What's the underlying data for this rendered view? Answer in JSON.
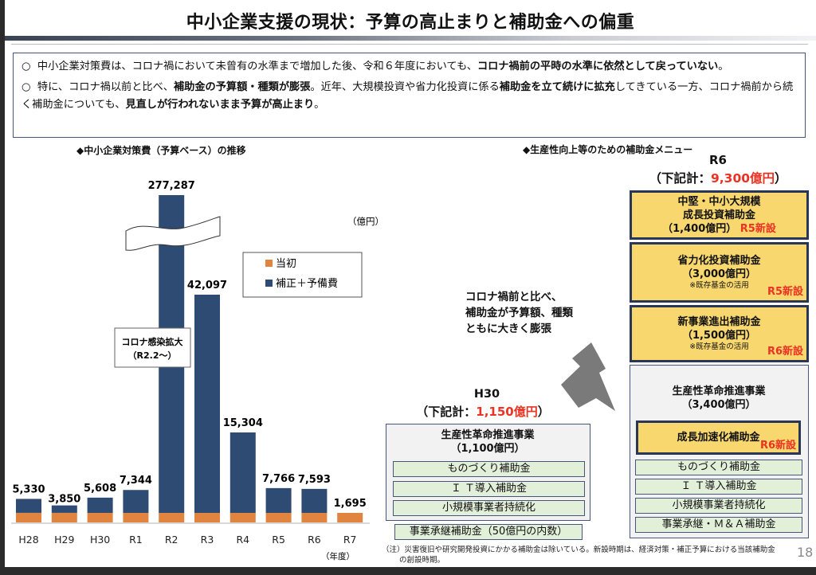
{
  "title": "中小企業支援の現状：予算の高止まりと補助金への偏重",
  "summary": [
    {
      "bullet": "○",
      "normal1": "中小企業対策費は、コロナ禍において未曾有の水準まで増加した後、令和６年度においても、",
      "bold1": "コロナ禍前の平時の水準に依然として戻っていない",
      "normal2": "。",
      "bold2": "",
      "normal3": "",
      "bold3": "",
      "normal4": ""
    },
    {
      "bullet": "○",
      "normal1": "特に、コロナ禍以前と比べ、",
      "bold1": "補助金の予算額・種類が膨張",
      "normal2": "。近年、大規模投資や省力化投資に係る",
      "bold2": "補助金を立て続けに拡充",
      "normal3": "してきている一方、コロナ禍前から続く補助金についても、",
      "bold3": "見直しが行われないまま予算が高止まり",
      "normal4": "。"
    }
  ],
  "chart_section_title": "◆中小企業対策費（予算ベース）の推移",
  "menu_section_title": "◆生産性向上等のための補助金メニュー",
  "chart_data": {
    "type": "bar",
    "stacked": true,
    "title": "中小企業対策費（予算ベース）の推移",
    "unit_label": "（億円）",
    "xlabel": "（年度）",
    "ylabel": "",
    "categories": [
      "H28",
      "H29",
      "H30",
      "R1",
      "R2",
      "R3",
      "R4",
      "R5",
      "R6",
      "R7"
    ],
    "totals": [
      5330,
      3850,
      5608,
      7344,
      277287,
      42097,
      15304,
      7766,
      7593,
      1695
    ],
    "total_labels": [
      "5,330",
      "3,850",
      "5,608",
      "7,344",
      "277,287",
      "42,097",
      "15,304",
      "7,766",
      "7,593",
      "1,695"
    ],
    "series": [
      {
        "name": "当初",
        "color": "#e0843f",
        "values": [
          1811,
          1811,
          1771,
          1740,
          1790,
          1745,
          1713,
          1704,
          1693,
          1695
        ]
      },
      {
        "name": "補正＋予備費",
        "color": "#2e4b73",
        "values": [
          3519,
          2039,
          3837,
          5604,
          275497,
          40352,
          13591,
          6062,
          5900,
          0
        ]
      }
    ],
    "axis_break": {
      "category": "R2",
      "note": "bar truncated with wavy break symbol"
    },
    "annotation": {
      "text_line1": "コロナ感染拡大",
      "text_line2": "（R2.2～）"
    },
    "legend_position": "center-right",
    "grid": false
  },
  "r6": {
    "label": "R6",
    "subtotal_prefix": "（下記計：",
    "subtotal_value": "9,300億円",
    "subtotal_suffix": "）",
    "boxes": [
      {
        "lines": [
          "中堅・中小大規模",
          "成長投資補助金",
          "（1,400億円）"
        ],
        "note": "",
        "tag": "R5新設"
      },
      {
        "lines": [
          "省力化投資補助金",
          "（3,000億円）"
        ],
        "note": "※既存基金の活用",
        "tag": "R5新設"
      },
      {
        "lines": [
          "新事業進出補助金",
          "（1,500億円）"
        ],
        "note": "※既存基金の活用",
        "tag": "R6新設"
      }
    ],
    "program": {
      "title": "生産性革命推進事業",
      "amount": "（3,400億円）",
      "new_item": {
        "label": "成長加速化補助金",
        "tag": "R6新設"
      },
      "items": [
        "ものづくり補助金",
        "Ｉ Ｔ導入補助金",
        "小規模事業者持続化",
        "事業承継・Ｍ＆Ａ補助金"
      ]
    }
  },
  "h30": {
    "label": "H30",
    "subtotal_prefix": "（下記計：",
    "subtotal_value": "1,150億円",
    "subtotal_suffix": "）",
    "program": {
      "title": "生産性革命推進事業",
      "amount": "（1,100億円）",
      "items": [
        "ものづくり補助金",
        "Ｉ Ｔ導入補助金",
        "小規模事業者持続化"
      ]
    },
    "extra_item": "事業承継補助金（50億円の内数）"
  },
  "callout": [
    "コロナ禍前と比べ、",
    "補助金が予算額、種類",
    "ともに大きく膨張"
  ],
  "footnote": [
    "（注）災害復旧や研究開発投資にかかる補助金は除いている。新設時期は、経済対策・補正予算における当該補助金",
    "の創設時期。"
  ],
  "page_number": "18",
  "colors": {
    "navy_bar": "#2e4b73",
    "orange_bar": "#e0843f",
    "highlight_red": "#ea3323",
    "yellow_box": "#f7d76e",
    "green_box": "#e2efd9"
  }
}
